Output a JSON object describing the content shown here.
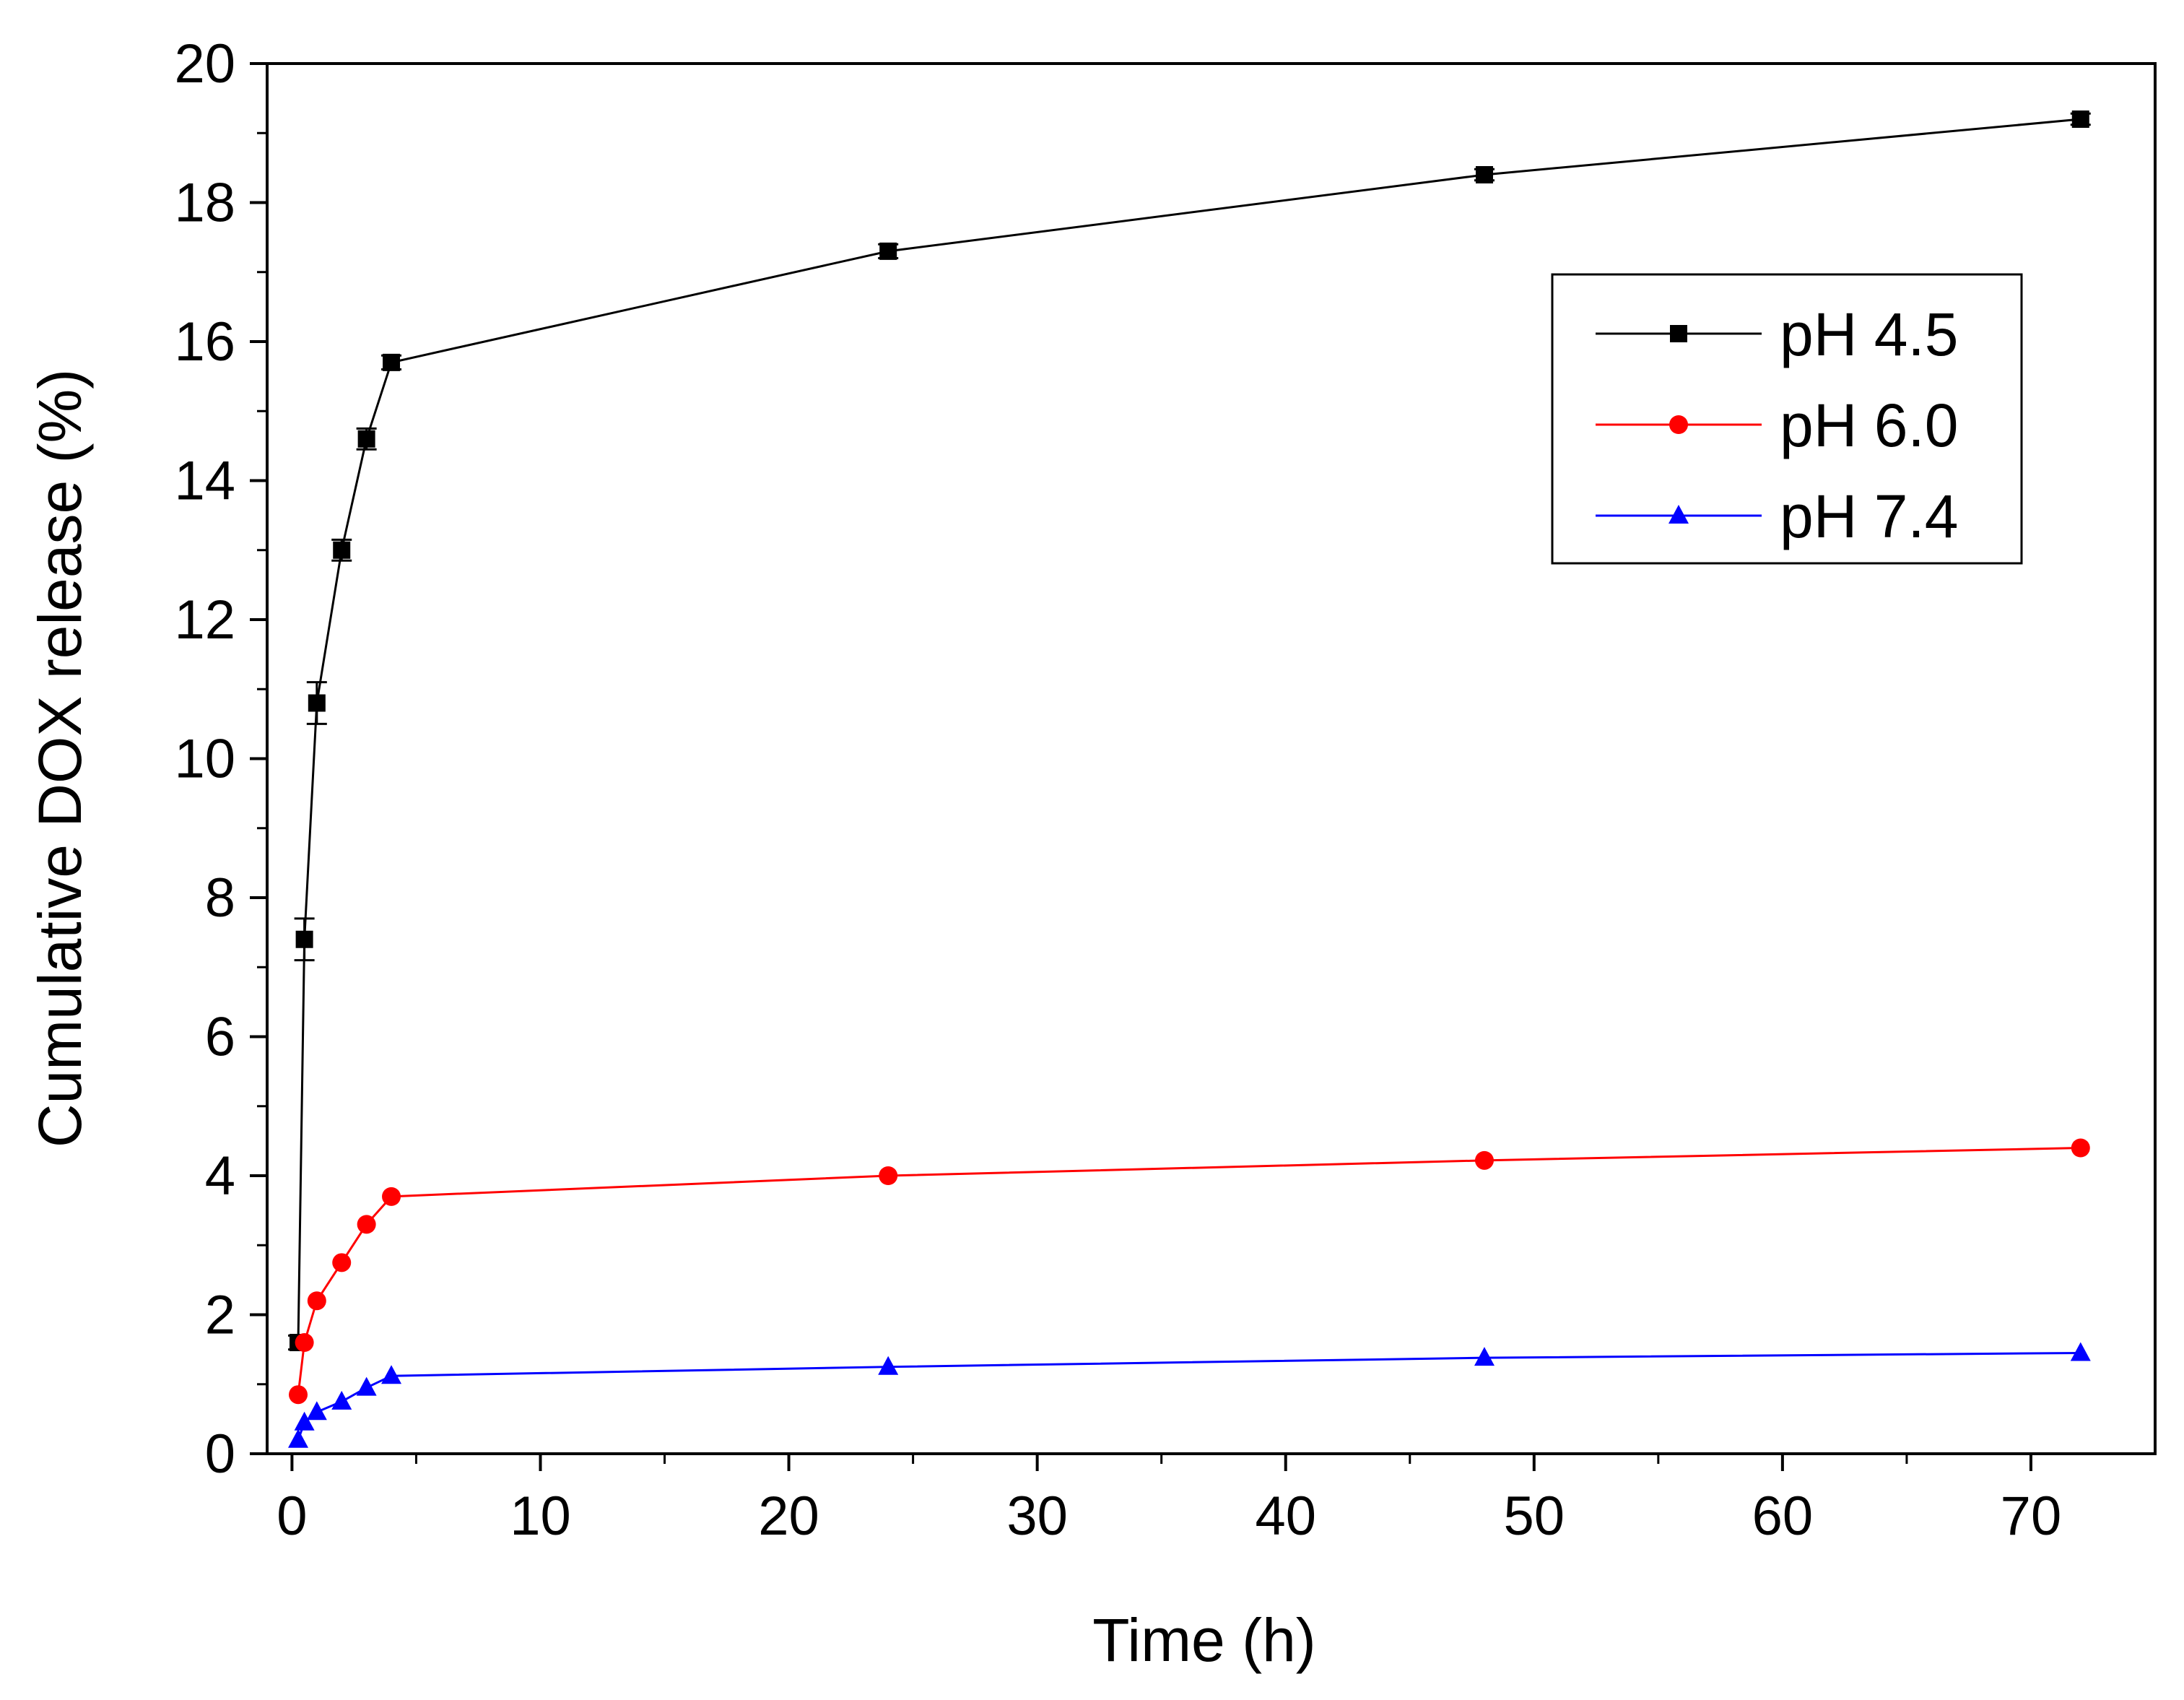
{
  "chart_data": {
    "type": "line",
    "title": "",
    "xlabel": "Time (h)",
    "ylabel": "Cumulative DOX release (%)",
    "xlim": [
      -1,
      75
    ],
    "ylim": [
      0,
      20
    ],
    "xticks": [
      0,
      10,
      20,
      30,
      40,
      50,
      60,
      70
    ],
    "yticks": [
      0,
      2,
      4,
      6,
      8,
      10,
      12,
      14,
      16,
      18,
      20
    ],
    "grid": false,
    "legend_position": "top-right",
    "x": [
      0.25,
      0.5,
      1,
      2,
      3,
      4,
      24,
      48,
      72
    ],
    "series": [
      {
        "name": "pH 4.5",
        "color": "#000000",
        "marker": "square",
        "values": [
          1.6,
          7.4,
          10.8,
          13.0,
          14.6,
          15.7,
          17.3,
          18.4,
          19.2
        ],
        "errors": [
          0.1,
          0.3,
          0.3,
          0.15,
          0.15,
          0.1,
          0.1,
          0.08,
          0.08
        ]
      },
      {
        "name": "pH 6.0",
        "color": "#ff0000",
        "marker": "circle",
        "values": [
          0.85,
          1.6,
          2.2,
          2.75,
          3.3,
          3.7,
          4.0,
          4.22,
          4.4
        ],
        "errors": [
          0,
          0,
          0,
          0,
          0,
          0,
          0,
          0,
          0
        ]
      },
      {
        "name": "pH 7.4",
        "color": "#0000ff",
        "marker": "triangle",
        "values": [
          0.2,
          0.45,
          0.6,
          0.75,
          0.95,
          1.12,
          1.25,
          1.38,
          1.45
        ],
        "errors": [
          0,
          0,
          0,
          0,
          0,
          0,
          0,
          0,
          0
        ]
      }
    ]
  }
}
